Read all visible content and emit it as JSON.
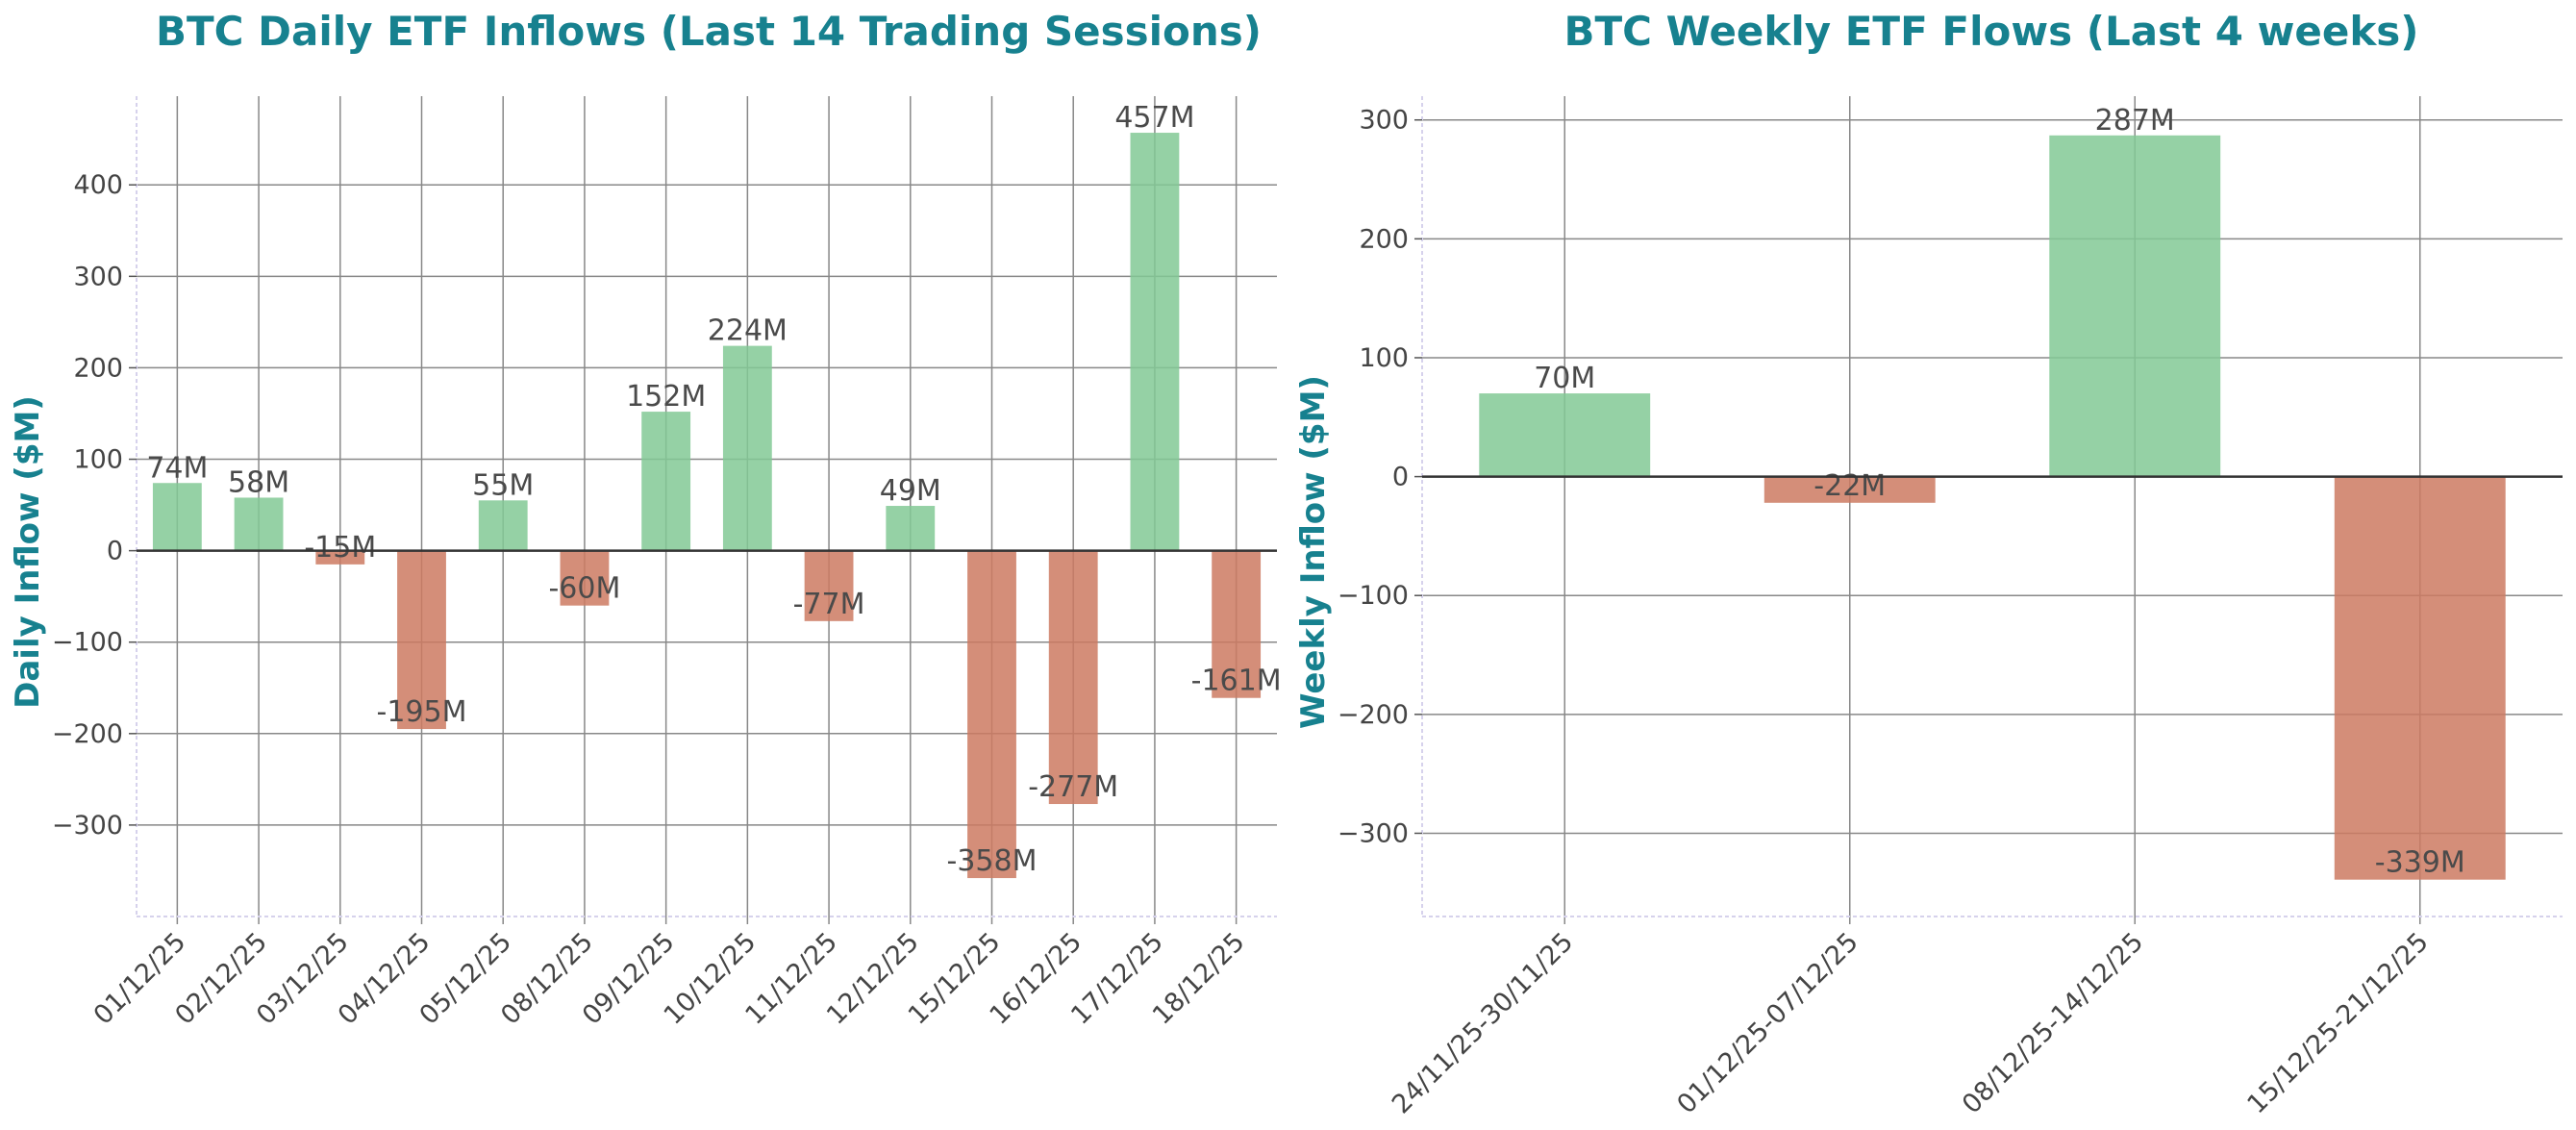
{
  "chart_data": [
    {
      "type": "bar",
      "title": "BTC Daily ETF Inflows (Last 14 Trading Sessions)",
      "xlabel": "",
      "ylabel": "Daily Inflow ($M)",
      "categories": [
        "01/12/25",
        "02/12/25",
        "03/12/25",
        "04/12/25",
        "05/12/25",
        "08/12/25",
        "09/12/25",
        "10/12/25",
        "11/12/25",
        "12/12/25",
        "15/12/25",
        "16/12/25",
        "17/12/25",
        "18/12/25"
      ],
      "values": [
        74,
        58,
        -15,
        -195,
        55,
        -60,
        152,
        224,
        -77,
        49,
        -358,
        -277,
        457,
        -161
      ],
      "data_labels": [
        "74M",
        "58M",
        "-15M",
        "-195M",
        "55M",
        "-60M",
        "152M",
        "224M",
        "-77M",
        "49M",
        "-358M",
        "-277M",
        "457M",
        "-161M"
      ],
      "yticks": [
        -300,
        -200,
        -100,
        0,
        100,
        200,
        300,
        400
      ],
      "ytick_labels": [
        "−300",
        "−200",
        "−100",
        "0",
        "100",
        "200",
        "300",
        "400"
      ],
      "ylim": [
        -400,
        497
      ],
      "grid": true,
      "colors": {
        "positive": "#82c995",
        "negative": "#cd7a62"
      }
    },
    {
      "type": "bar",
      "title": "BTC Weekly ETF Flows (Last 4 weeks)",
      "xlabel": "",
      "ylabel": "Weekly Inflow ($M)",
      "categories": [
        "24/11/25-30/11/25",
        "01/12/25-07/12/25",
        "08/12/25-14/12/25",
        "15/12/25-21/12/25"
      ],
      "values": [
        70,
        -22,
        287,
        -339
      ],
      "data_labels": [
        "70M",
        "-22M",
        "287M",
        "-339M"
      ],
      "yticks": [
        -300,
        -200,
        -100,
        0,
        100,
        200,
        300
      ],
      "ytick_labels": [
        "−300",
        "−200",
        "−100",
        "0",
        "100",
        "200",
        "300"
      ],
      "ylim": [
        -370,
        320
      ],
      "grid": true,
      "colors": {
        "positive": "#82c995",
        "negative": "#cd7a62"
      }
    }
  ]
}
